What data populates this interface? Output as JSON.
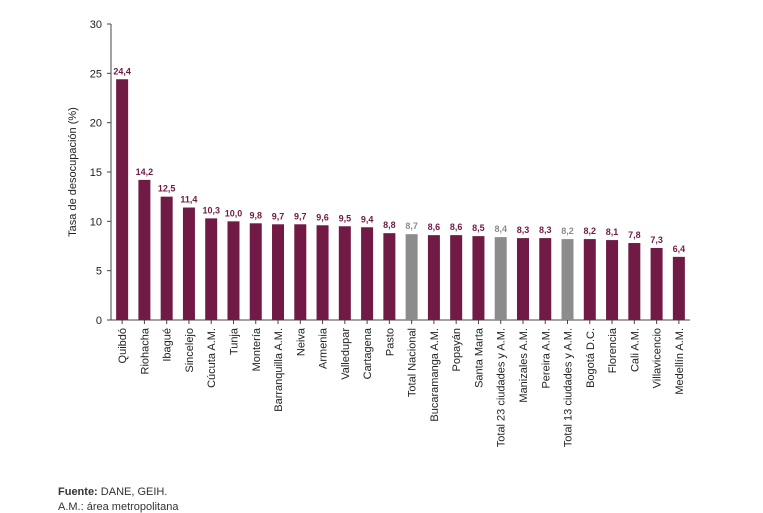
{
  "chart_data": {
    "type": "bar",
    "title": "",
    "xlabel": "",
    "ylabel": "Tasa de desocupación (%)",
    "ylim": [
      0,
      30
    ],
    "yticks": [
      0,
      5,
      10,
      15,
      20,
      25,
      30
    ],
    "grid": false,
    "legend": "none",
    "categories": [
      "Quibdó",
      "Riohacha",
      "Ibagué",
      "Sincelejo",
      "Cúcuta A.M.",
      "Tunja",
      "Montería",
      "Barranquilla A.M.",
      "Neiva",
      "Armenia",
      "Valledupar",
      "Cartagena",
      "Pasto",
      "Total Nacional",
      "Bucaramanga A.M.",
      "Popayán",
      "Santa Marta",
      "Total 23 ciudades y A.M.",
      "Manizales A.M.",
      "Pereira A.M.",
      "Total 13 ciudades y A.M.",
      "Bogotá D.C.",
      "Florencia",
      "Cali A.M.",
      "Villavicencio",
      "Medellín A.M."
    ],
    "values": [
      24.4,
      14.2,
      12.5,
      11.4,
      10.3,
      10.0,
      9.8,
      9.7,
      9.7,
      9.6,
      9.5,
      9.4,
      8.8,
      8.7,
      8.6,
      8.6,
      8.5,
      8.4,
      8.3,
      8.3,
      8.2,
      8.2,
      8.1,
      7.8,
      7.3,
      6.4
    ],
    "value_labels": [
      "24,4",
      "14,2",
      "12,5",
      "11,4",
      "10,3",
      "10,0",
      "9,8",
      "9,7",
      "9,7",
      "9,6",
      "9,5",
      "9,4",
      "8,8",
      "8,7",
      "8,6",
      "8,6",
      "8,5",
      "8,4",
      "8,3",
      "8,3",
      "8,2",
      "8,2",
      "8,1",
      "7,8",
      "7,3",
      "6,4"
    ],
    "highlight": [
      "Total Nacional",
      "Total 23 ciudades y A.M.",
      "Total 13 ciudades y A.M."
    ],
    "colors": {
      "bar": "#701a45",
      "highlight": "#8c8c8c",
      "label": "#701a45",
      "highlight_label": "#8c8c8c",
      "axis": "#444444"
    }
  },
  "footnote": {
    "source_label": "Fuente:",
    "source_text": " DANE, GEIH.",
    "abbrev": "A.M.: área metropolitana"
  }
}
